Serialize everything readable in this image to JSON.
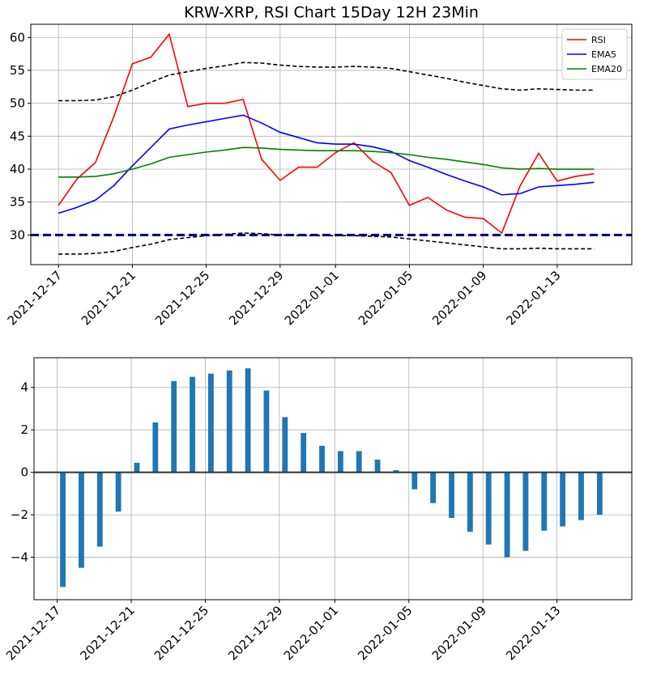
{
  "chart_data": [
    {
      "type": "line",
      "title": "KRW-XRP, RSI Chart 15Day 12H 23Min",
      "x": [
        "2021-12-17",
        "2021-12-18",
        "2021-12-19",
        "2021-12-20",
        "2021-12-21",
        "2021-12-22",
        "2021-12-23",
        "2021-12-24",
        "2021-12-25",
        "2021-12-26",
        "2021-12-27",
        "2021-12-28",
        "2021-12-29",
        "2021-12-30",
        "2021-12-31",
        "2022-01-01",
        "2022-01-02",
        "2022-01-03",
        "2022-01-04",
        "2022-01-05",
        "2022-01-06",
        "2022-01-07",
        "2022-01-08",
        "2022-01-09",
        "2022-01-10",
        "2022-01-11",
        "2022-01-12",
        "2022-01-13",
        "2022-01-14",
        "2022-01-15"
      ],
      "series": [
        {
          "name": "RSI",
          "color": "#ff0000",
          "values": [
            34.5,
            38.5,
            41,
            48,
            56,
            57,
            60.5,
            49.5,
            50,
            50,
            50.6,
            41.5,
            38.3,
            40.3,
            40.3,
            42.5,
            44,
            41.2,
            39.5,
            34.5,
            35.7,
            33.8,
            32.7,
            32.5,
            30.3,
            37.5,
            42.4,
            38.2,
            38.9,
            39.3
          ]
        },
        {
          "name": "EMA5",
          "color": "#0000ff",
          "values": [
            33.3,
            34.2,
            35.3,
            37.5,
            40.5,
            43.3,
            46.1,
            46.7,
            47.2,
            47.7,
            48.2,
            47.0,
            45.6,
            44.8,
            44.0,
            43.8,
            43.8,
            43.4,
            42.7,
            41.3,
            40.3,
            39.2,
            38.2,
            37.3,
            36.1,
            36.3,
            37.3,
            37.5,
            37.7,
            38.0
          ]
        },
        {
          "name": "EMA20",
          "color": "#008000",
          "values": [
            38.8,
            38.8,
            38.9,
            39.3,
            40.0,
            40.8,
            41.8,
            42.2,
            42.6,
            42.9,
            43.3,
            43.2,
            43.0,
            42.9,
            42.8,
            42.8,
            42.8,
            42.7,
            42.5,
            42.2,
            41.8,
            41.5,
            41.1,
            40.7,
            40.2,
            40.0,
            40.1,
            40.0,
            40.0,
            40.0
          ]
        },
        {
          "color": "#000000",
          "dash": true,
          "values": [
            50.4,
            50.4,
            50.5,
            51.0,
            52.0,
            53.2,
            54.3,
            54.8,
            55.3,
            55.7,
            56.2,
            56.1,
            55.8,
            55.6,
            55.5,
            55.5,
            55.6,
            55.5,
            55.3,
            54.8,
            54.3,
            53.8,
            53.2,
            52.7,
            52.2,
            52.0,
            52.2,
            52.1,
            52.0,
            52.0
          ]
        },
        {
          "color": "#000000",
          "dash": true,
          "values": [
            27.1,
            27.1,
            27.2,
            27.5,
            28.1,
            28.6,
            29.3,
            29.6,
            29.9,
            30.1,
            30.3,
            30.2,
            30.0,
            29.9,
            29.9,
            29.9,
            29.9,
            29.8,
            29.7,
            29.4,
            29.1,
            28.8,
            28.5,
            28.2,
            27.9,
            27.9,
            28.0,
            27.9,
            27.9,
            27.9
          ]
        }
      ],
      "hline": 30,
      "hline_color": "#00007f",
      "xlim": [
        "2021-12-15T12:00:00Z",
        "2022-01-17T01:00:00Z"
      ],
      "xticks": [
        "2021-12-17",
        "2021-12-21",
        "2021-12-25",
        "2021-12-29",
        "2022-01-01",
        "2022-01-05",
        "2022-01-09",
        "2022-01-13"
      ],
      "ylim": [
        25.5,
        62
      ],
      "yticks": [
        30,
        35,
        40,
        45,
        50,
        55,
        60
      ],
      "grid": true,
      "legend": "upper right"
    },
    {
      "type": "bar",
      "x": [
        "2021-12-17",
        "2021-12-18",
        "2021-12-19",
        "2021-12-20",
        "2021-12-21",
        "2021-12-22",
        "2021-12-23",
        "2021-12-24",
        "2021-12-25",
        "2021-12-26",
        "2021-12-27",
        "2021-12-28",
        "2021-12-29",
        "2021-12-30",
        "2021-12-31",
        "2022-01-01",
        "2022-01-02",
        "2022-01-03",
        "2022-01-04",
        "2022-01-05",
        "2022-01-06",
        "2022-01-07",
        "2022-01-08",
        "2022-01-09",
        "2022-01-10",
        "2022-01-11",
        "2022-01-12",
        "2022-01-13",
        "2022-01-14",
        "2022-01-15"
      ],
      "values": [
        -5.4,
        -4.5,
        -3.5,
        -1.85,
        0.45,
        2.35,
        4.3,
        4.5,
        4.65,
        4.8,
        4.9,
        3.85,
        2.6,
        1.85,
        1.25,
        1.0,
        1.0,
        0.6,
        0.1,
        -0.8,
        -1.45,
        -2.15,
        -2.8,
        -3.4,
        -4.0,
        -3.7,
        -2.75,
        -2.55,
        -2.25,
        -2.0
      ],
      "color": "#1f77b4",
      "xlim": [
        "2021-12-15T18:00:00Z",
        "2022-01-17T01:00:00Z"
      ],
      "xticks": [
        "2021-12-17",
        "2021-12-21",
        "2021-12-25",
        "2021-12-29",
        "2022-01-01",
        "2022-01-05",
        "2022-01-09",
        "2022-01-13"
      ],
      "ylim": [
        -6,
        5.4
      ],
      "yticks": [
        {
          "value": -4,
          "label": "−4"
        },
        {
          "value": -2,
          "label": "−2"
        },
        0,
        2,
        4
      ],
      "grid": true
    }
  ]
}
